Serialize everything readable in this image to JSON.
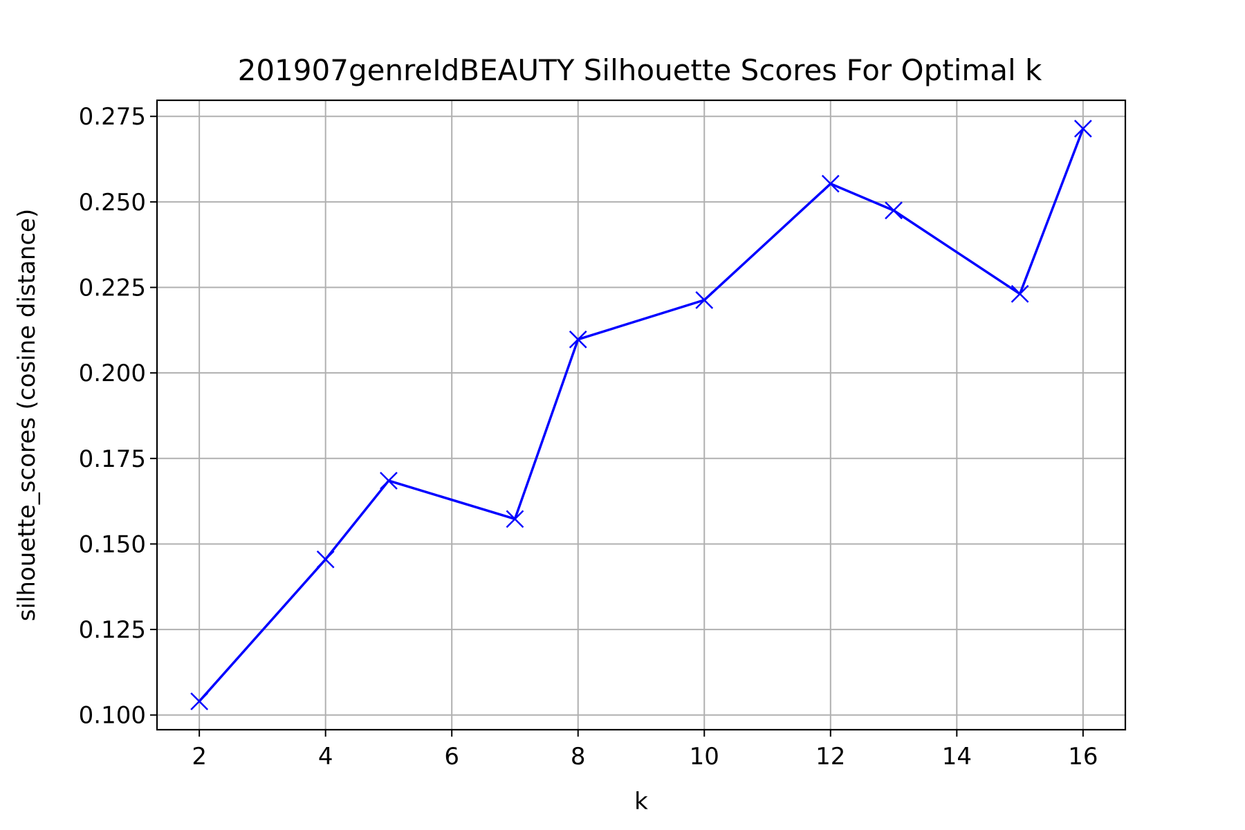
{
  "chart_data": {
    "type": "line",
    "title": "201907genreIdBEAUTY Silhouette Scores For Optimal k",
    "xlabel": "k",
    "ylabel": "silhouette_scores (cosine distance)",
    "x": [
      2,
      4,
      5,
      7,
      8,
      10,
      12,
      13,
      15,
      16
    ],
    "series": [
      {
        "values": [
          0.104,
          0.1455,
          0.1685,
          0.1573,
          0.2098,
          0.2213,
          0.2553,
          0.2475,
          0.2231,
          0.2714
        ],
        "color": "#0000ff",
        "marker": "x"
      }
    ],
    "xlim": [
      1.33,
      16.67
    ],
    "ylim": [
      0.0957,
      0.2797
    ],
    "xticks": [
      2,
      4,
      6,
      8,
      10,
      12,
      14,
      16
    ],
    "xtick_labels": [
      "2",
      "4",
      "6",
      "8",
      "10",
      "12",
      "14",
      "16"
    ],
    "yticks": [
      0.1,
      0.125,
      0.15,
      0.175,
      0.2,
      0.225,
      0.25,
      0.275
    ],
    "ytick_labels": [
      "0.100",
      "0.125",
      "0.150",
      "0.175",
      "0.200",
      "0.225",
      "0.250",
      "0.275"
    ],
    "grid": true
  }
}
